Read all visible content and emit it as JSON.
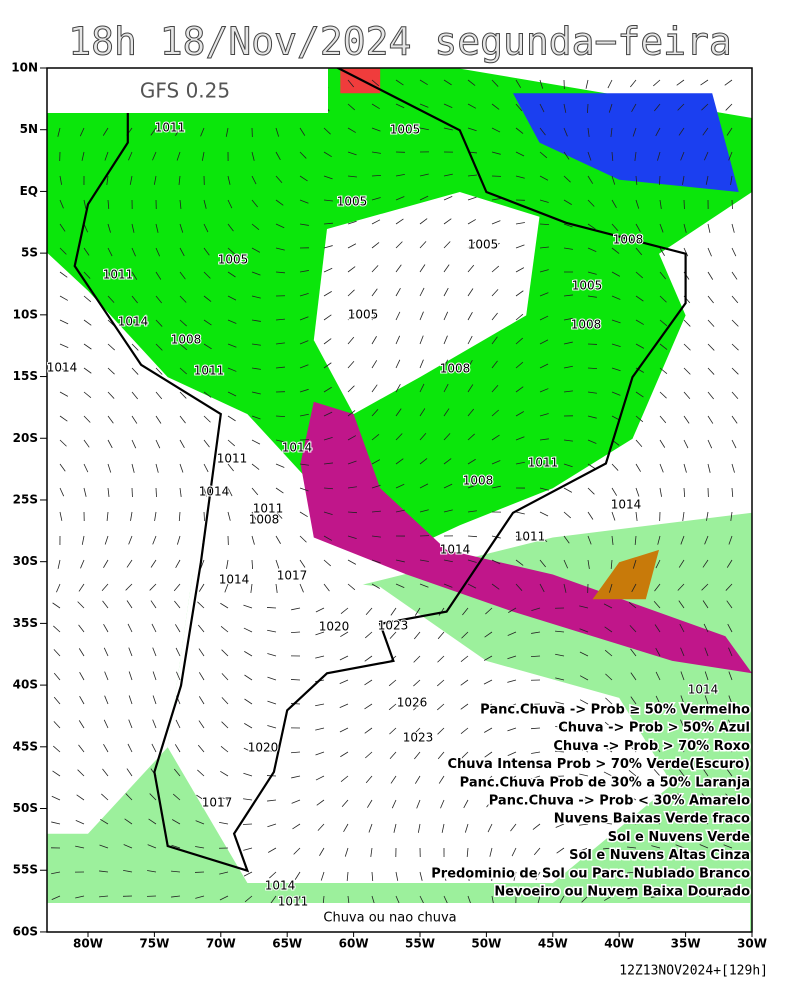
{
  "header": {
    "title": "18h 18/Nov/2024 segunda−feira"
  },
  "map": {
    "model_label": "GFS 0.25",
    "lat_labels": [
      "10N",
      "5N",
      "EQ",
      "5S",
      "10S",
      "15S",
      "20S",
      "25S",
      "30S",
      "35S",
      "40S",
      "45S",
      "50S",
      "55S",
      "60S"
    ],
    "lon_labels": [
      "80W",
      "75W",
      "70W",
      "65W",
      "60W",
      "55W",
      "50W",
      "45W",
      "40W",
      "35W",
      "30W"
    ],
    "isobar_labels": [
      "1011",
      "1005",
      "1005",
      "1005",
      "1008",
      "1005",
      "1005",
      "1011",
      "1014",
      "1005",
      "1008",
      "1008",
      "1014",
      "1011",
      "1008",
      "1014",
      "1011",
      "1011",
      "1008",
      "1014",
      "1011",
      "1008",
      "1014",
      "1011",
      "1014",
      "1014",
      "1017",
      "1020",
      "1023",
      "1026",
      "1014",
      "1023",
      "1020",
      "1017",
      "1014",
      "1011"
    ],
    "bottom_label": "Chuva ou nao chuva"
  },
  "legend": {
    "lines": [
      "Panc.Chuva -> Prob ≥ 50% Vermelho",
      "Chuva -> Prob > 50% Azul",
      "Chuva -> Prob > 70% Roxo",
      "Chuva Intensa Prob > 70% Verde(Escuro)",
      "Panc.Chuva Prob de 30% a 50% Laranja",
      "Panc.Chuva -> Prob < 30% Amarelo",
      "Nuvens Baixas Verde fraco",
      "Sol e Nuvens Verde",
      "Sol e Nuvens Altas Cinza",
      "Predominio de Sol ou Parc. Nublado Branco",
      "Nevoeiro ou Nuvem Baixa Dourado"
    ]
  },
  "footer": {
    "run": "12Z13NOV2024+[129h]"
  }
}
